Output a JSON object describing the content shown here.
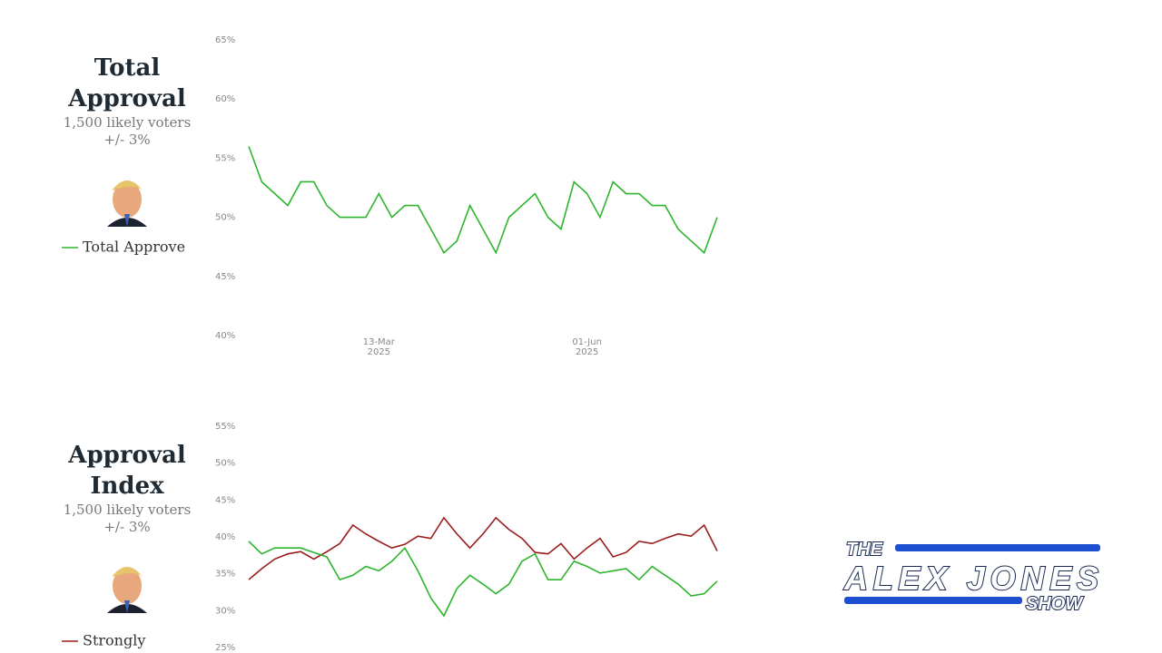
{
  "chart_data": [
    {
      "type": "line",
      "title": "Total Approval",
      "subtitle": "1,500 likely voters",
      "note": "+/- 3%",
      "categories": [
        null,
        null,
        null,
        null,
        null,
        null,
        null,
        null,
        null,
        null,
        "13-Mar 2025",
        null,
        null,
        null,
        null,
        null,
        null,
        null,
        null,
        null,
        null,
        null,
        null,
        null,
        null,
        null,
        "01-Jun 2025",
        null,
        null,
        null,
        null,
        null,
        null,
        null,
        null,
        null,
        null
      ],
      "series": [
        {
          "name": "Total Approve",
          "color": "#2db52d",
          "values": [
            56,
            53,
            52,
            51,
            53,
            53,
            51,
            50,
            50,
            50,
            52,
            50,
            51,
            51,
            49,
            47,
            48,
            51,
            49,
            47,
            50,
            51,
            52,
            50,
            49,
            53,
            52,
            50,
            53,
            52,
            52,
            51,
            51,
            49,
            48,
            47,
            50
          ]
        }
      ],
      "ylim": [
        40,
        65
      ],
      "yticks": [
        {
          "value": 40,
          "label": "40%"
        },
        {
          "value": 45,
          "label": "45%"
        },
        {
          "value": 50,
          "label": "50%"
        },
        {
          "value": 55,
          "label": "55%"
        },
        {
          "value": 60,
          "label": "60%"
        },
        {
          "value": 65,
          "label": "65%"
        }
      ]
    },
    {
      "type": "line",
      "title": "Approval Index",
      "subtitle": "1,500 likely voters",
      "note": "+/- 3%",
      "series": [
        {
          "name": "Strongly",
          "color": "#9b1c1c",
          "values": [
            34.2,
            35.7,
            37,
            37.7,
            38,
            37,
            38,
            39.1,
            41.6,
            40.4,
            39.4,
            38.5,
            39,
            40.1,
            39.8,
            42.6,
            40.4,
            38.5,
            40.4,
            42.6,
            41,
            39.8,
            37.9,
            37.7,
            39.1,
            37,
            38.5,
            39.8,
            37.3,
            37.9,
            39.4,
            39.1,
            39.8,
            40.4,
            40.1,
            41.6,
            38.1
          ]
        },
        {
          "color": "#2db52d",
          "values": [
            39.4,
            37.7,
            38.5,
            38.5,
            38.5,
            37.9,
            37.3,
            34.2,
            34.8,
            36,
            35.4,
            36.7,
            38.5,
            35.4,
            31.7,
            29.3,
            33,
            34.8,
            33.6,
            32.3,
            33.6,
            36.7,
            37.7,
            34.2,
            34.2,
            36.7,
            36,
            35.1,
            35.4,
            35.7,
            34.2,
            36,
            34.8,
            33.6,
            32,
            32.3,
            34
          ]
        }
      ],
      "ylim": [
        25,
        55
      ],
      "yticks": [
        {
          "value": 25,
          "label": "25%"
        },
        {
          "value": 30,
          "label": "30%"
        },
        {
          "value": 35,
          "label": "35%"
        },
        {
          "value": 40,
          "label": "40%"
        },
        {
          "value": 45,
          "label": "45%"
        },
        {
          "value": 50,
          "label": "50%"
        },
        {
          "value": 55,
          "label": "55%"
        }
      ]
    }
  ],
  "logo": [
    "THE",
    "ALEX JONES",
    "SHOW"
  ]
}
